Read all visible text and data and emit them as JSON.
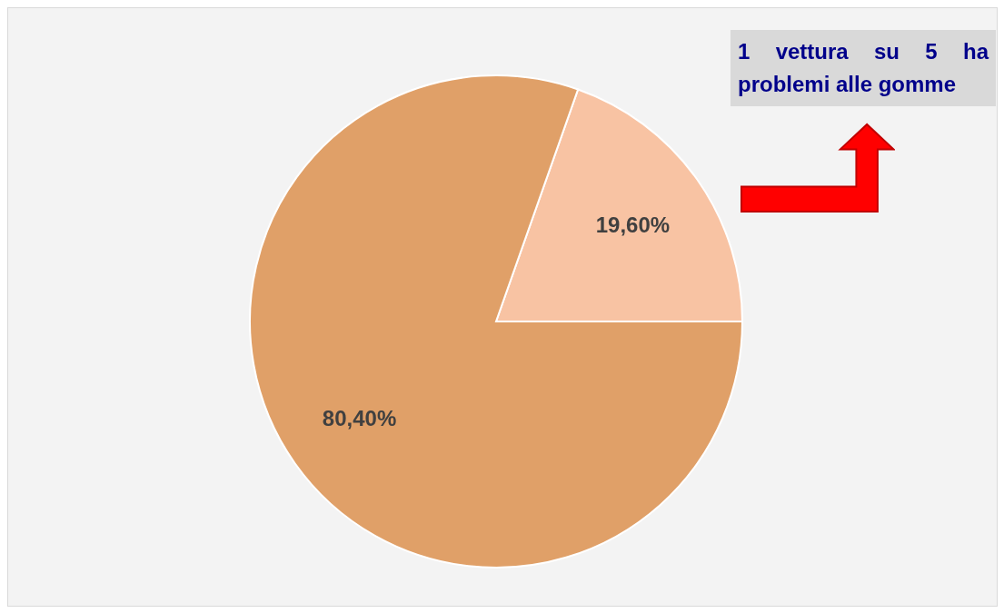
{
  "chart_data": {
    "type": "pie",
    "categories": [
      null,
      null
    ],
    "values": [
      19.6,
      80.4
    ],
    "colors": [
      "#f8c3a3",
      "#e0a068"
    ],
    "value_labels": [
      "19,60%",
      "80,40%"
    ],
    "annotations": [
      "1 vettura su 5 ha problemi alle gomme"
    ],
    "legend": false
  }
}
